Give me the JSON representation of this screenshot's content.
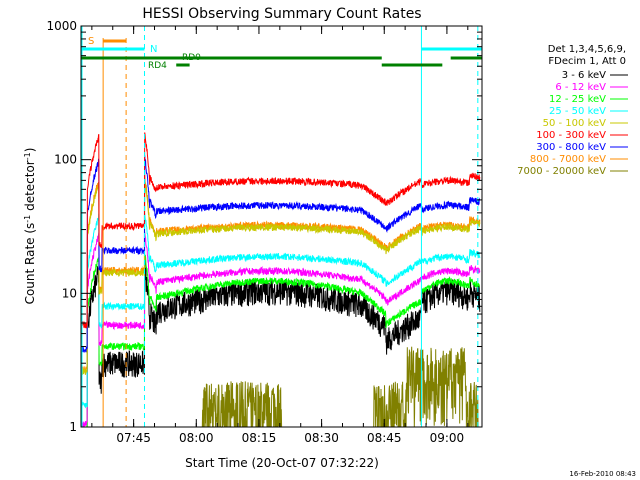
{
  "chart_data": {
    "type": "line",
    "title": "HESSI Observing Summary Count Rates",
    "xlabel": "Start Time (20-Oct-07 07:32:22)",
    "ylabel_main": "Count Rate (s",
    "ylabel_sup1": "-1",
    "ylabel_mid": " detector",
    "ylabel_sup2": "-1",
    "ylabel_end": ")",
    "yscale": "log",
    "ylim": [
      1,
      1000
    ],
    "xlim_minutes": [
      0,
      96
    ],
    "x_ticks": [
      {
        "label": "07:45",
        "minute": 12.6
      },
      {
        "label": "08:00",
        "minute": 27.6
      },
      {
        "label": "08:15",
        "minute": 42.6
      },
      {
        "label": "08:30",
        "minute": 57.6
      },
      {
        "label": "08:45",
        "minute": 72.6
      },
      {
        "label": "09:00",
        "minute": 87.6
      }
    ],
    "y_ticks": [
      {
        "label": "1",
        "value": 1
      },
      {
        "label": "10",
        "value": 10
      },
      {
        "label": "100",
        "value": 100
      },
      {
        "label": "1000",
        "value": 1000
      }
    ],
    "legend_header": [
      "Det 1,3,4,5,6,9,",
      "FDecim 1, Att 0"
    ],
    "series": [
      {
        "name": "3 - 6 keV",
        "color": "#000000",
        "base": 5.5,
        "hump": 1.9
      },
      {
        "name": "6 - 12 keV",
        "color": "#ff00ff",
        "base": 10.5,
        "hump": 1.4
      },
      {
        "name": "12 - 25 keV",
        "color": "#00ff00",
        "base": 7.3,
        "hump": 1.7
      },
      {
        "name": "25 - 50 keV",
        "color": "#00ffff",
        "base": 14.5,
        "hump": 1.3
      },
      {
        "name": "50 - 100 keV",
        "color": "#c8c800",
        "base": 26,
        "hump": 1.2
      },
      {
        "name": "100 - 300 keV",
        "color": "#ff0000",
        "base": 58,
        "hump": 1.2
      },
      {
        "name": "300 - 800 keV",
        "color": "#0000ff",
        "base": 38,
        "hump": 1.2
      },
      {
        "name": "800 - 7000 keV",
        "color": "#ff8c00",
        "base": 27,
        "hump": 1.2
      },
      {
        "name": "7000 - 20000 keV",
        "color": "#808000",
        "base": 1.4,
        "hump": 1.0
      }
    ],
    "flags": [
      {
        "label": "S",
        "color": "#ff8c00"
      },
      {
        "label": "N",
        "color": "#00ffff"
      },
      {
        "label": "RD0",
        "color": "#008000"
      },
      {
        "label": "RD4",
        "color": "#008000"
      }
    ],
    "saa_minutes": [
      0,
      15.2,
      81.5,
      95.0
    ],
    "timestamp": "16-Feb-2010 08:43"
  }
}
